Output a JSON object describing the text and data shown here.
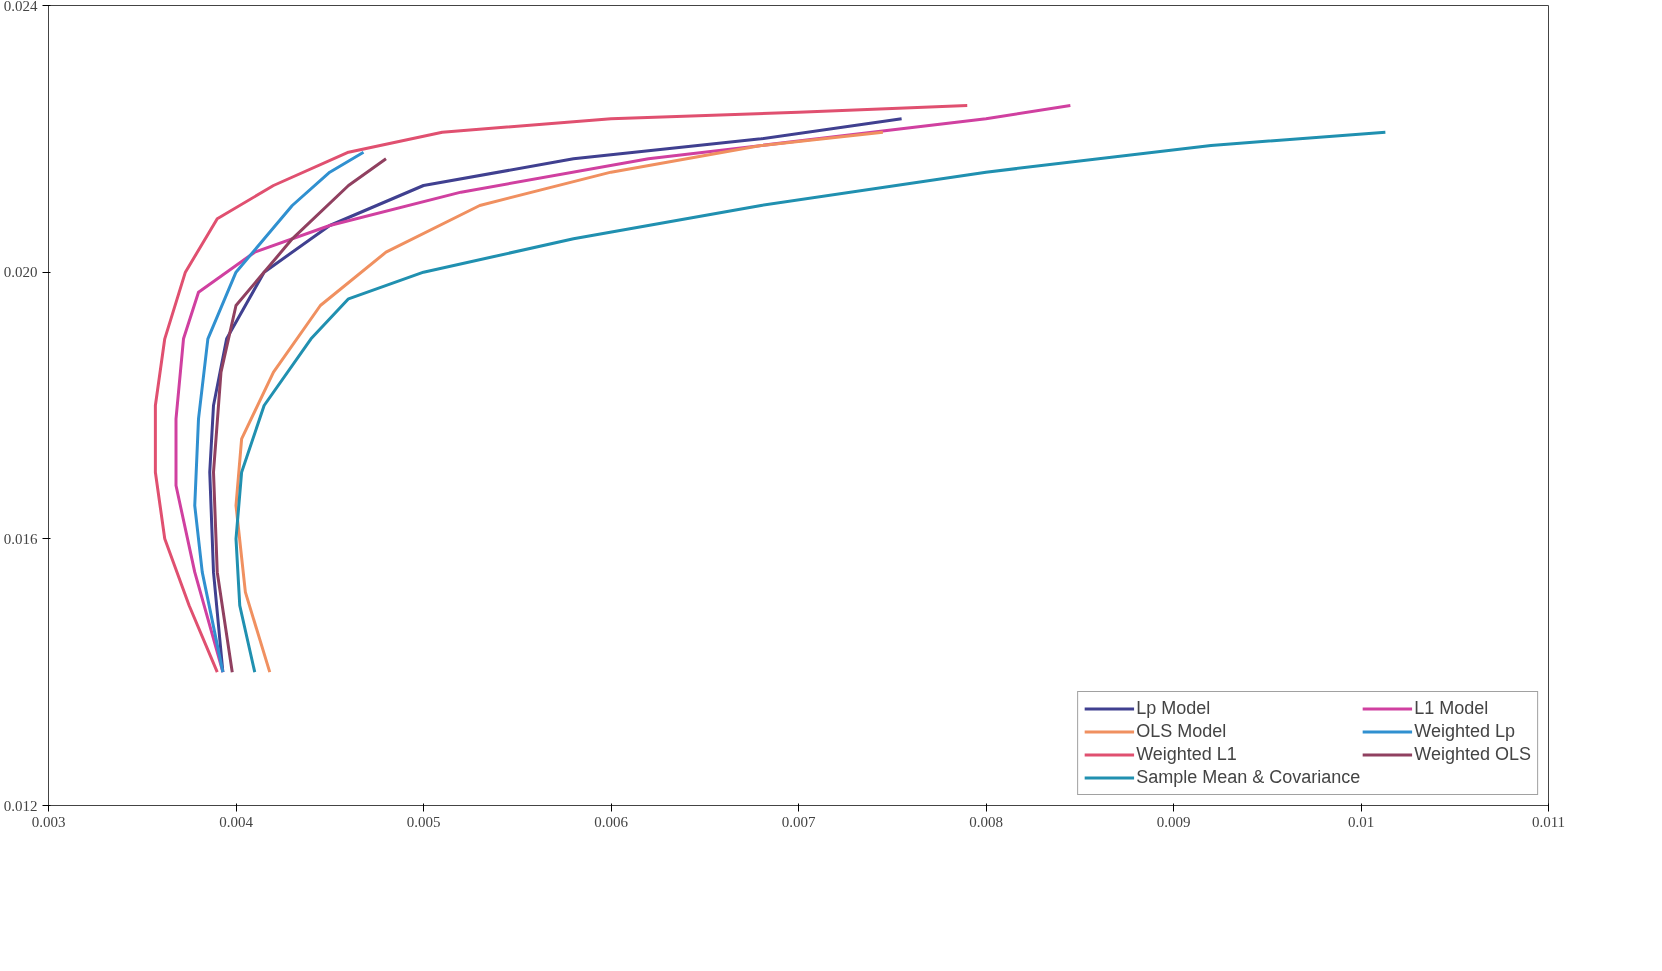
{
  "chart_data": {
    "type": "line",
    "xlim": [
      0.003,
      0.011
    ],
    "ylim": [
      0.012,
      0.024
    ],
    "xticks": [
      {
        "value": 0.003,
        "label": "0.003"
      },
      {
        "value": 0.004,
        "label": "0.004"
      },
      {
        "value": 0.005,
        "label": "0.005"
      },
      {
        "value": 0.006,
        "label": "0.006"
      },
      {
        "value": 0.007,
        "label": "0.007"
      },
      {
        "value": 0.008,
        "label": "0.008"
      },
      {
        "value": 0.009,
        "label": "0.009"
      },
      {
        "value": 0.01,
        "label": "0.01"
      },
      {
        "value": 0.011,
        "label": "0.011"
      }
    ],
    "yticks": [
      {
        "value": 0.012,
        "label": "0.012"
      },
      {
        "value": 0.016,
        "label": "0.016"
      },
      {
        "value": 0.02,
        "label": "0.020"
      },
      {
        "value": 0.024,
        "label": "0.024"
      }
    ],
    "grid": false,
    "legend": "bottom right",
    "marker": "none",
    "line_style": "solid",
    "series": [
      {
        "name": "Lp Model",
        "color": "#404090",
        "x": [
          0.00393,
          0.00388,
          0.00386,
          0.00388,
          0.00395,
          0.00415,
          0.0045,
          0.005,
          0.0058,
          0.0068,
          0.00755
        ],
        "values": [
          0.014,
          0.0155,
          0.017,
          0.018,
          0.019,
          0.02,
          0.0207,
          0.0213,
          0.0217,
          0.022,
          0.0223
        ]
      },
      {
        "name": "L1 Model",
        "color": "#d040a0",
        "x": [
          0.00393,
          0.00378,
          0.00368,
          0.00368,
          0.00372,
          0.0038,
          0.0041,
          0.0045,
          0.0052,
          0.0062,
          0.0071,
          0.008,
          0.00845
        ],
        "values": [
          0.014,
          0.0155,
          0.0168,
          0.0178,
          0.019,
          0.0197,
          0.0203,
          0.0207,
          0.0212,
          0.0217,
          0.022,
          0.0223,
          0.0225
        ]
      },
      {
        "name": "OLS Model",
        "color": "#f09060",
        "x": [
          0.00418,
          0.00405,
          0.004,
          0.00403,
          0.0042,
          0.00445,
          0.0048,
          0.0053,
          0.006,
          0.0068,
          0.00745
        ],
        "values": [
          0.014,
          0.0152,
          0.0165,
          0.0175,
          0.0185,
          0.0195,
          0.0203,
          0.021,
          0.0215,
          0.0219,
          0.0221
        ]
      },
      {
        "name": "Weighted Lp",
        "color": "#3090d0",
        "x": [
          0.00393,
          0.00382,
          0.00378,
          0.0038,
          0.00385,
          0.004,
          0.0043,
          0.0045,
          0.00468
        ],
        "values": [
          0.014,
          0.0155,
          0.0165,
          0.0178,
          0.019,
          0.02,
          0.021,
          0.0215,
          0.0218
        ]
      },
      {
        "name": "Weighted L1",
        "color": "#e05070",
        "x": [
          0.0039,
          0.00375,
          0.00362,
          0.00357,
          0.00357,
          0.00362,
          0.00373,
          0.0039,
          0.0042,
          0.0046,
          0.0051,
          0.006,
          0.007,
          0.0079
        ],
        "values": [
          0.014,
          0.015,
          0.016,
          0.017,
          0.018,
          0.019,
          0.02,
          0.0208,
          0.0213,
          0.0218,
          0.0221,
          0.0223,
          0.0224,
          0.0225
        ]
      },
      {
        "name": "Weighted OLS",
        "color": "#904060",
        "x": [
          0.00398,
          0.0039,
          0.00388,
          0.00392,
          0.004,
          0.0043,
          0.0046,
          0.0048
        ],
        "values": [
          0.014,
          0.0155,
          0.017,
          0.0185,
          0.0195,
          0.0205,
          0.0213,
          0.0217
        ]
      },
      {
        "name": "Sample Mean & Covariance",
        "color": "#2090b0",
        "x": [
          0.0041,
          0.00402,
          0.004,
          0.00403,
          0.00415,
          0.0044,
          0.0046,
          0.005,
          0.0058,
          0.0068,
          0.008,
          0.0092,
          0.01013
        ],
        "values": [
          0.014,
          0.015,
          0.016,
          0.017,
          0.018,
          0.019,
          0.0196,
          0.02,
          0.0205,
          0.021,
          0.0215,
          0.0219,
          0.0221
        ]
      }
    ]
  }
}
